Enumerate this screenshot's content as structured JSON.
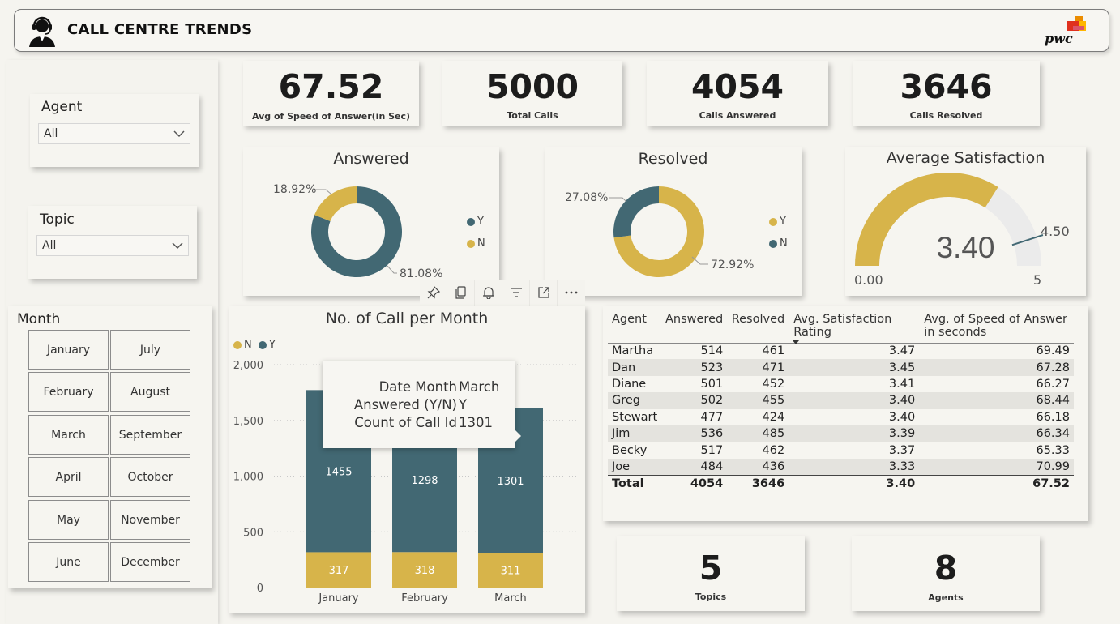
{
  "header": {
    "title": "CALL CENTRE TRENDS",
    "logo_text": "pwc"
  },
  "filters": {
    "agent": {
      "label": "Agent",
      "value": "All"
    },
    "topic": {
      "label": "Topic",
      "value": "All"
    },
    "month": {
      "label": "Month",
      "items": [
        "January",
        "July",
        "February",
        "August",
        "March",
        "September",
        "April",
        "October",
        "May",
        "November",
        "June",
        "December"
      ]
    }
  },
  "kpis": {
    "speed": {
      "value": "67.52",
      "label": "Avg of Speed of Answer(in Sec)"
    },
    "total_calls": {
      "value": "5000",
      "label": "Total Calls"
    },
    "answered": {
      "value": "4054",
      "label": "Calls Answered"
    },
    "resolved": {
      "value": "3646",
      "label": "Calls Resolved"
    },
    "topics": {
      "value": "5",
      "label": "Topics"
    },
    "agents": {
      "value": "8",
      "label": "Agents"
    }
  },
  "toolbar": [
    "pin-icon",
    "copy-icon",
    "bell-icon",
    "filter-icon",
    "focus-mode-icon",
    "more-options-icon"
  ],
  "colors": {
    "Y": "#426873",
    "N": "#d7b44a",
    "gauge_bg": "#ebebeb"
  },
  "tooltip": {
    "rows": [
      {
        "key": "Date Month",
        "value": "March"
      },
      {
        "key": "Answered (Y/N)",
        "value": "Y"
      },
      {
        "key": "Count of Call Id",
        "value": "1301"
      }
    ]
  },
  "chart_data": [
    {
      "type": "pie",
      "title": "Answered",
      "slices": [
        {
          "name": "Y",
          "value": 81.08,
          "label": "81.08%"
        },
        {
          "name": "N",
          "value": 18.92,
          "label": "18.92%"
        }
      ],
      "legend": [
        "Y",
        "N"
      ]
    },
    {
      "type": "pie",
      "title": "Resolved",
      "slices": [
        {
          "name": "Y",
          "value": 72.92,
          "label": "72.92%"
        },
        {
          "name": "N",
          "value": 27.08,
          "label": "27.08%"
        }
      ],
      "legend": [
        "Y",
        "N"
      ]
    },
    {
      "type": "gauge",
      "title": "Average Satisfaction",
      "value": 3.4,
      "value_label": "3.40",
      "min": 0,
      "min_label": "0.00",
      "max": 5,
      "max_label": "5",
      "target": 4.5,
      "target_label": "4.50"
    },
    {
      "type": "bar",
      "stacked": true,
      "title": "No. of Call per Month",
      "categories": [
        "January",
        "February",
        "March"
      ],
      "series": [
        {
          "name": "N",
          "values": [
            317,
            318,
            311
          ]
        },
        {
          "name": "Y",
          "values": [
            1455,
            1298,
            1301
          ]
        }
      ],
      "legend": [
        "N",
        "Y"
      ],
      "ylim": [
        0,
        2000
      ],
      "yticks": [
        0,
        500,
        1000,
        1500,
        2000
      ],
      "ytick_labels": [
        "0",
        "500",
        "1,000",
        "1,500",
        "2,000"
      ]
    },
    {
      "type": "table",
      "columns": [
        "Agent",
        "Answered",
        "Resolved",
        "Avg. Satisfaction Rating",
        "Avg. of Speed of Answer in seconds"
      ],
      "rows": [
        [
          "Martha",
          "514",
          "461",
          "3.47",
          "69.49"
        ],
        [
          "Dan",
          "523",
          "471",
          "3.45",
          "67.28"
        ],
        [
          "Diane",
          "501",
          "452",
          "3.41",
          "66.27"
        ],
        [
          "Greg",
          "502",
          "455",
          "3.40",
          "68.44"
        ],
        [
          "Stewart",
          "477",
          "424",
          "3.40",
          "66.18"
        ],
        [
          "Jim",
          "536",
          "485",
          "3.39",
          "66.34"
        ],
        [
          "Becky",
          "517",
          "462",
          "3.37",
          "65.33"
        ],
        [
          "Joe",
          "484",
          "436",
          "3.33",
          "70.99"
        ]
      ],
      "total": [
        "Total",
        "4054",
        "3646",
        "3.40",
        "67.52"
      ]
    }
  ]
}
